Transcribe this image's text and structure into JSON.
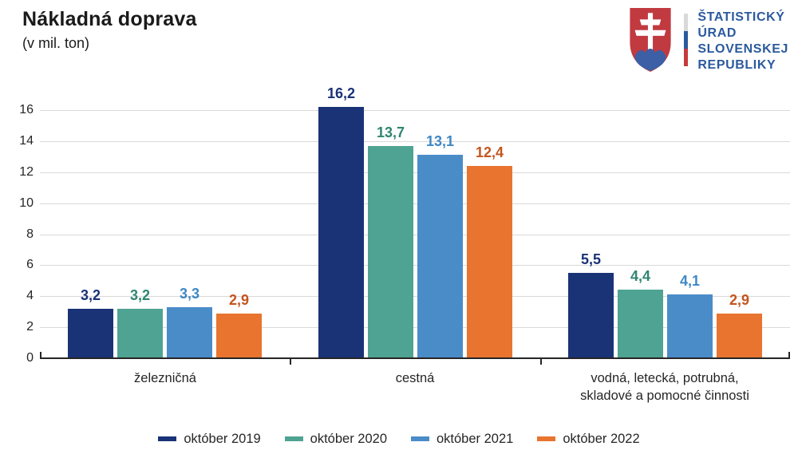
{
  "header": {
    "title": "Nákladná doprava",
    "subtitle": "(v mil. ton)",
    "logo": {
      "name": "statisticky-urad-slovenskej-republiky",
      "text_lines": [
        "ŠTATISTICKÝ",
        "ÚRAD",
        "SLOVENSKEJ",
        "REPUBLIKY"
      ],
      "text_color": "#2b5a9e",
      "shield_red": "#c03a40",
      "shield_blue": "#3c5fa5",
      "stripe_colors": [
        "#d9d9d9",
        "#2b5a9e",
        "#c8393c"
      ]
    }
  },
  "chart_data": {
    "type": "bar",
    "title": "Nákladná doprava",
    "subtitle": "(v mil. ton)",
    "unit": "mil. ton",
    "categories": [
      "železničná",
      "cestná",
      "vodná, letecká, potrubná,\nskladové a pomocné činnosti"
    ],
    "series": [
      {
        "name": "október 2019",
        "color": "#1a3276",
        "label_color": "#1a3276",
        "values": [
          3.2,
          16.2,
          5.5
        ]
      },
      {
        "name": "október 2020",
        "color": "#4fa392",
        "label_color": "#2f8570",
        "values": [
          3.2,
          13.7,
          4.4
        ]
      },
      {
        "name": "október 2021",
        "color": "#4a8cc8",
        "label_color": "#3f88c5",
        "values": [
          3.3,
          13.1,
          4.1
        ]
      },
      {
        "name": "október 2022",
        "color": "#e8742f",
        "label_color": "#c4551e",
        "values": [
          2.9,
          12.4,
          2.9
        ]
      }
    ],
    "ylim": [
      0,
      16
    ],
    "yticks": [
      0,
      2,
      4,
      6,
      8,
      10,
      12,
      14,
      16
    ],
    "grid": true,
    "legend_position": "bottom",
    "decimal_separator": ","
  }
}
